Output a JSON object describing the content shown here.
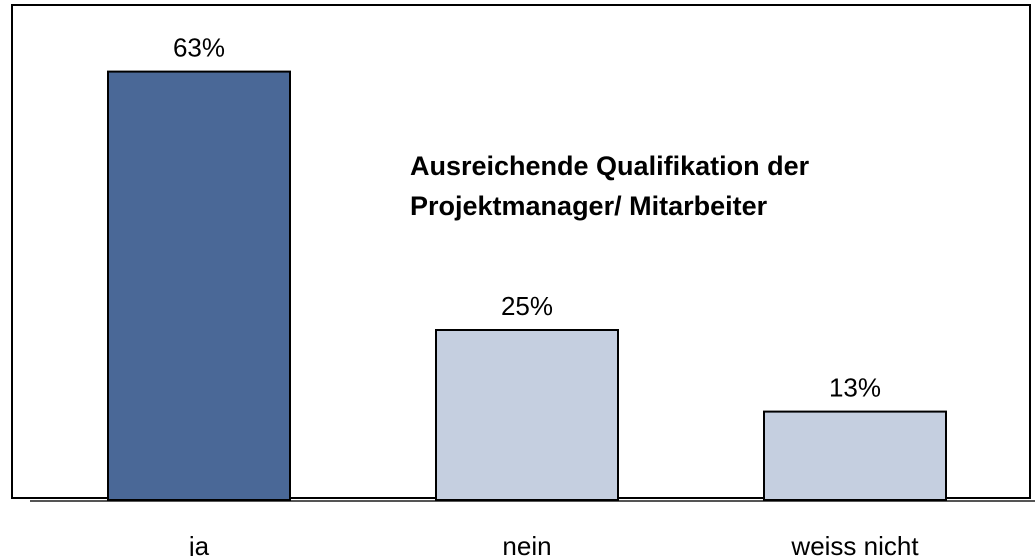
{
  "chart_data": {
    "type": "bar",
    "title": "Ausreichende Qualifikation der Projektmanager/ Mitarbeiter",
    "categories": [
      "ja",
      "nein",
      "weiss nicht"
    ],
    "values": [
      63,
      25,
      13
    ],
    "value_labels": [
      "63%",
      "25%",
      "13%"
    ],
    "colors": [
      "#4a6897",
      "#c5cfe0",
      "#c5cfe0"
    ]
  }
}
